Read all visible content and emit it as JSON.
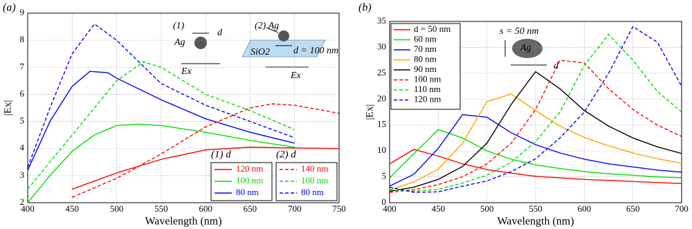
{
  "chart_data": [
    {
      "type": "line",
      "panel_label": "(a)",
      "xlabel": "Wavelength (nm)",
      "ylabel": "|Ex|",
      "xlim": [
        400,
        750
      ],
      "xticks": [
        400,
        450,
        500,
        550,
        600,
        650,
        700,
        750
      ],
      "ylim": [
        2,
        9
      ],
      "yticks": [
        2,
        3,
        4,
        5,
        6,
        7,
        8,
        9
      ],
      "grid": true,
      "legend_titles": [
        "(1) d",
        "(2) d"
      ],
      "annotations": [
        "(1)",
        "Ag",
        "d",
        "Ex",
        "(2) Ag",
        "SiO2",
        "d = 100 nm",
        "Ex"
      ],
      "series": [
        {
          "name": "120 nm",
          "color": "#ff0000",
          "dash": false,
          "x": [
            450,
            500,
            550,
            600,
            650,
            700,
            750
          ],
          "values": [
            2.5,
            3.1,
            3.6,
            3.95,
            4.05,
            4.02,
            4.0
          ]
        },
        {
          "name": "100 nm",
          "color": "#00dd00",
          "dash": false,
          "x": [
            400,
            425,
            450,
            475,
            500,
            525,
            550,
            600,
            650,
            700
          ],
          "values": [
            2.0,
            3.0,
            3.9,
            4.5,
            4.85,
            4.9,
            4.85,
            4.6,
            4.3,
            4.05
          ]
        },
        {
          "name": "80 nm",
          "color": "#0000ff",
          "dash": false,
          "x": [
            400,
            425,
            450,
            470,
            490,
            500,
            550,
            600,
            650,
            700
          ],
          "values": [
            3.2,
            5.0,
            6.3,
            6.85,
            6.8,
            6.6,
            5.8,
            5.1,
            4.6,
            4.2
          ]
        },
        {
          "name": "140 nm",
          "color": "#ff0000",
          "dash": true,
          "x": [
            450,
            500,
            550,
            600,
            650,
            675,
            700,
            750
          ],
          "values": [
            2.2,
            2.9,
            3.8,
            4.8,
            5.5,
            5.65,
            5.6,
            5.3
          ]
        },
        {
          "name": "100 nm",
          "color": "#00dd00",
          "dash": true,
          "x": [
            400,
            450,
            500,
            530,
            550,
            600,
            650,
            700
          ],
          "values": [
            2.5,
            4.5,
            6.5,
            7.2,
            7.0,
            6.0,
            5.4,
            4.7
          ]
        },
        {
          "name": "80 nm",
          "color": "#0000ff",
          "dash": true,
          "x": [
            400,
            425,
            450,
            475,
            500,
            550,
            600,
            650,
            700
          ],
          "values": [
            3.3,
            5.5,
            7.5,
            8.6,
            8.0,
            6.4,
            5.6,
            5.0,
            4.4
          ]
        }
      ]
    },
    {
      "type": "line",
      "panel_label": "(b)",
      "xlabel": "Wavelength (nm)",
      "ylabel": "|Ex|",
      "xlim": [
        400,
        700
      ],
      "xticks": [
        400,
        450,
        500,
        550,
        600,
        650,
        700
      ],
      "ylim": [
        0,
        35
      ],
      "yticks": [
        0,
        5,
        10,
        15,
        20,
        25,
        30,
        35
      ],
      "grid": true,
      "annotations": [
        "s = 50 nm",
        "Ag",
        "d"
      ],
      "x": [
        400,
        425,
        450,
        475,
        500,
        525,
        550,
        575,
        600,
        625,
        650,
        675,
        700
      ],
      "series": [
        {
          "name": "d = 50 nm",
          "color": "#ff0000",
          "dash": false,
          "values": [
            7.5,
            10.3,
            9.0,
            7.5,
            6.4,
            5.7,
            5.1,
            4.8,
            4.5,
            4.3,
            4.1,
            3.9,
            3.7
          ]
        },
        {
          "name": "60 nm",
          "color": "#00dd00",
          "dash": false,
          "values": [
            4.8,
            9.5,
            14.1,
            12.5,
            10.0,
            8.4,
            7.3,
            6.6,
            6.0,
            5.6,
            5.3,
            5.0,
            4.8
          ]
        },
        {
          "name": "70 nm",
          "color": "#0000ff",
          "dash": false,
          "values": [
            3.2,
            5.5,
            10.5,
            17.0,
            16.5,
            13.5,
            11.2,
            9.6,
            8.4,
            7.5,
            6.9,
            6.3,
            5.9
          ]
        },
        {
          "name": "80 nm",
          "color": "#ffa500",
          "dash": false,
          "values": [
            2.5,
            4.0,
            6.5,
            11.5,
            19.5,
            21.0,
            17.8,
            14.8,
            12.6,
            11.0,
            9.6,
            8.5,
            7.6
          ]
        },
        {
          "name": "90 nm",
          "color": "#000000",
          "dash": false,
          "values": [
            2.2,
            3.0,
            4.5,
            7.0,
            11.5,
            19.0,
            25.3,
            22.0,
            17.8,
            14.8,
            12.5,
            10.8,
            9.5
          ]
        },
        {
          "name": "100 nm",
          "color": "#ff0000",
          "dash": true,
          "values": [
            2.0,
            2.5,
            3.5,
            5.0,
            7.5,
            11.5,
            18.0,
            27.5,
            27.0,
            22.0,
            18.0,
            15.0,
            12.8
          ]
        },
        {
          "name": "110 nm",
          "color": "#00dd00",
          "dash": true,
          "values": [
            2.5,
            2.2,
            2.6,
            3.8,
            5.3,
            7.8,
            11.8,
            17.5,
            26.5,
            32.5,
            27.5,
            21.5,
            17.5
          ]
        },
        {
          "name": "120 nm",
          "color": "#0000ff",
          "dash": true,
          "values": [
            3.0,
            2.0,
            2.1,
            3.2,
            4.2,
            6.0,
            8.5,
            12.5,
            17.5,
            25.0,
            34.0,
            31.0,
            22.5
          ]
        }
      ]
    }
  ]
}
